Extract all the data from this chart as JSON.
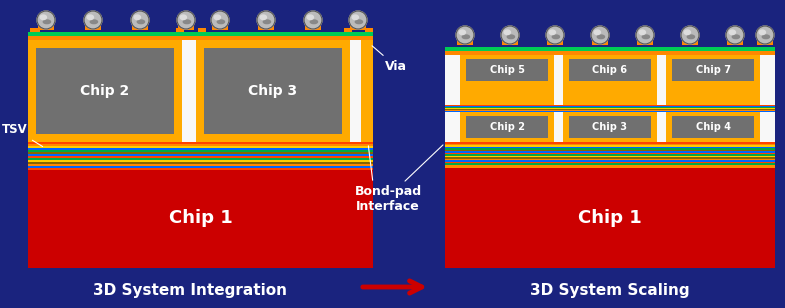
{
  "bg_color": "#1a237e",
  "title_left": "3D System Integration",
  "title_right": "3D System Scaling",
  "arrow_color": "#cc0000",
  "chip1_color": "#cc0000",
  "chip_gray": "#707070",
  "via_color": "#ffaa00",
  "white_bg": "#f8f8f8",
  "label_color": "#ffffff",
  "tsv_label": "TSV",
  "via_label": "Via",
  "bondpad_label": "Bond-pad\nInterface",
  "layer_seq": [
    "#ff4400",
    "#0066ff",
    "#00aa44",
    "#886600",
    "#ffaa00",
    "#ff4400",
    "#0066ff",
    "#00aa44",
    "#886600",
    "#ffaa00"
  ],
  "top_seq": [
    "#ff8800",
    "#00cc55",
    "#ff8800"
  ],
  "solder_dark": "#888888",
  "solder_mid": "#bbbbbb",
  "solder_light": "#dddddd"
}
